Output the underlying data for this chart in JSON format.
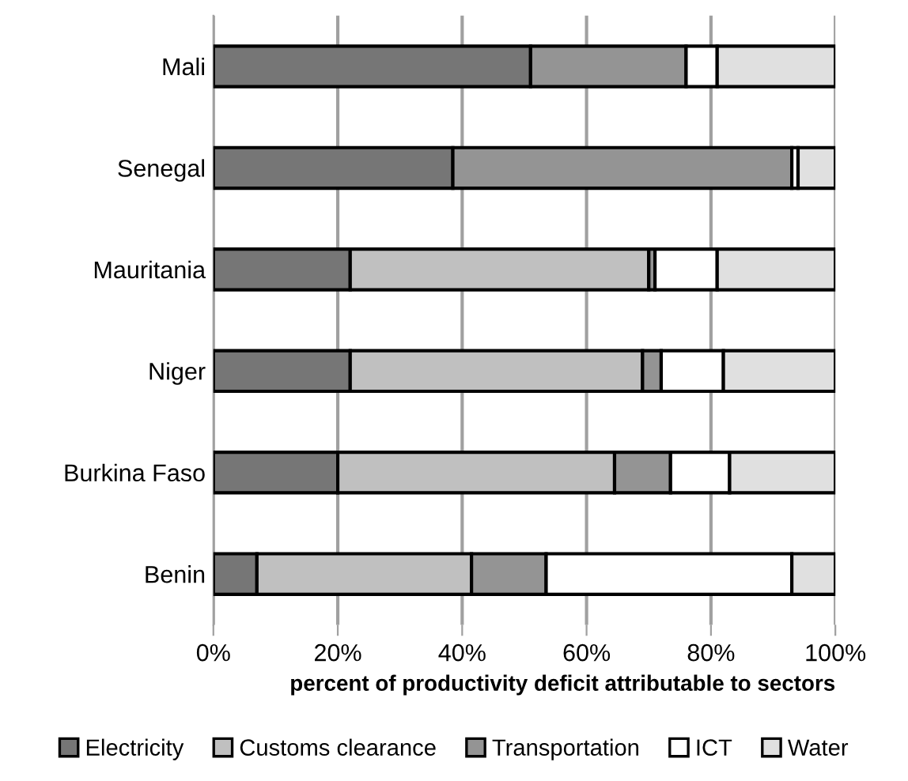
{
  "chart_data": {
    "type": "bar",
    "orientation": "horizontal",
    "stacked": true,
    "xlabel": "percent of productivity deficit attributable to sectors",
    "categories": [
      "Mali",
      "Senegal",
      "Mauritania",
      "Niger",
      "Burkina Faso",
      "Benin"
    ],
    "series": [
      {
        "name": "Electricity",
        "color": "#767676",
        "values": [
          51,
          38.5,
          22,
          22,
          20,
          7
        ]
      },
      {
        "name": "Customs clearance",
        "color": "#c0c0c0",
        "values": [
          null,
          null,
          48,
          47,
          44.5,
          34.5
        ]
      },
      {
        "name": "Transportation",
        "color": "#949494",
        "values": [
          25,
          54.5,
          1,
          3,
          9,
          12
        ]
      },
      {
        "name": "ICT",
        "color": "#ffffff",
        "values": [
          5,
          1,
          10,
          10,
          9.5,
          39.5
        ]
      },
      {
        "name": "Water",
        "color": "#e0e0e0",
        "values": [
          19,
          6,
          19,
          18,
          17,
          7
        ]
      }
    ],
    "xlim": [
      0,
      100
    ],
    "xticks": [
      {
        "value": 0,
        "label": "0%"
      },
      {
        "value": 20,
        "label": "20%"
      },
      {
        "value": 40,
        "label": "40%"
      },
      {
        "value": 60,
        "label": "60%"
      },
      {
        "value": 80,
        "label": "80%"
      },
      {
        "value": 100,
        "label": "100%"
      }
    ],
    "grid": "x",
    "legend": "bottom"
  }
}
